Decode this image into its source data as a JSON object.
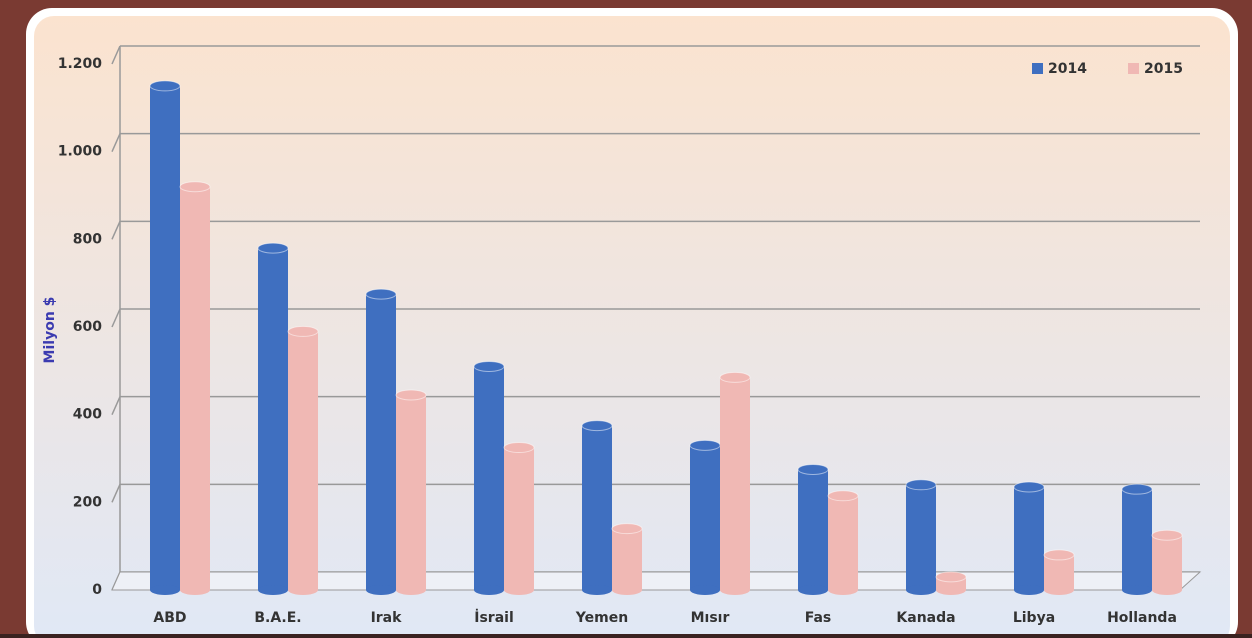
{
  "chart_data": {
    "type": "bar",
    "y_label": "Milyon $",
    "categories": [
      "ABD",
      "B.A.E.",
      "Irak",
      "İsrail",
      "Yemen",
      "Mısır",
      "Fas",
      "Kanada",
      "Libya",
      "Hollanda"
    ],
    "series": [
      {
        "name": "2014",
        "color": "#3f6fc0",
        "values": [
          1150,
          780,
          675,
          510,
          375,
          330,
          275,
          240,
          235,
          230
        ]
      },
      {
        "name": "2015",
        "color": "#f0b8b4",
        "values": [
          920,
          590,
          445,
          325,
          140,
          485,
          215,
          30,
          80,
          125
        ]
      }
    ],
    "ylim": [
      0,
      1200
    ],
    "yticks": [
      0,
      200,
      400,
      600,
      800,
      {
        "value": 1000,
        "label": "1.000"
      },
      {
        "value": 1200,
        "label": "1.200"
      }
    ],
    "grid": true,
    "legend": "top-right"
  }
}
